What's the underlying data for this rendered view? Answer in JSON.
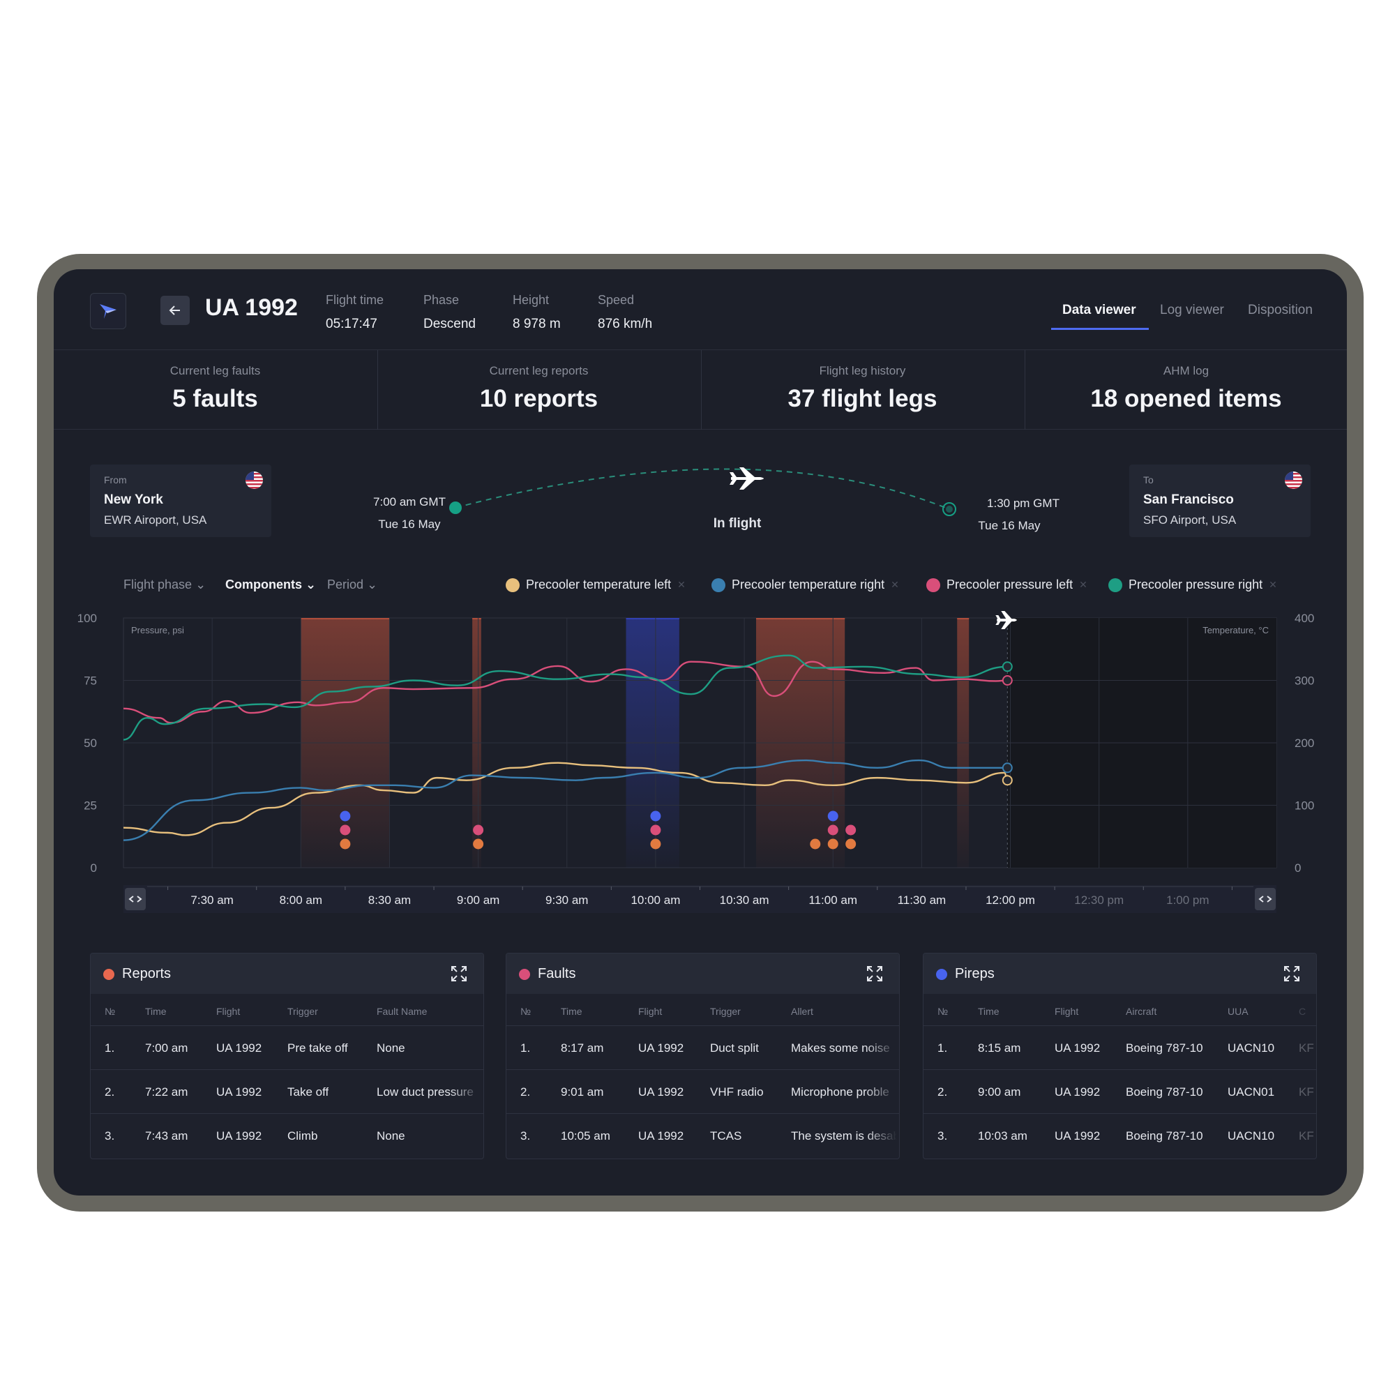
{
  "header": {
    "flight_no": "UA 1992",
    "stats": [
      {
        "label": "Flight time",
        "value": "05:17:47"
      },
      {
        "label": "Phase",
        "value": "Descend"
      },
      {
        "label": "Height",
        "value": "8 978 m"
      },
      {
        "label": "Speed",
        "value": "876 km/h"
      }
    ],
    "tabs": [
      {
        "label": "Data viewer",
        "active": true
      },
      {
        "label": "Log viewer",
        "active": false
      },
      {
        "label": "Disposition",
        "active": false
      }
    ]
  },
  "summary": [
    {
      "label": "Current leg faults",
      "value": "5 faults"
    },
    {
      "label": "Current leg reports",
      "value": "10 reports"
    },
    {
      "label": "Flight leg history",
      "value": "37 flight legs"
    },
    {
      "label": "AHM log",
      "value": "18 opened items"
    }
  ],
  "route": {
    "from": {
      "label": "From",
      "city": "New York",
      "airport": "EWR Airoport, USA"
    },
    "to": {
      "label": "To",
      "city": "San Francisco",
      "airport": "SFO Airport, USA"
    },
    "departure": {
      "time": "7:00 am GMT",
      "date": "Tue 16 May"
    },
    "arrival": {
      "time": "1:30 pm GMT",
      "date": "Tue 16 May"
    },
    "status": "In flight"
  },
  "filters": [
    {
      "label": "Flight phase",
      "active": false
    },
    {
      "label": "Components",
      "active": true
    },
    {
      "label": "Period",
      "active": false
    }
  ],
  "chart_data": {
    "type": "line",
    "left_axis": {
      "label": "Pressure, psi",
      "ticks": [
        "100",
        "75",
        "50",
        "25",
        "0"
      ],
      "range": [
        0,
        100
      ]
    },
    "right_axis": {
      "label": "Temperature, °C",
      "ticks": [
        "400",
        "300",
        "200",
        "100",
        "0"
      ],
      "range": [
        0,
        400
      ]
    },
    "x_ticks": [
      "7:30 am",
      "8:00 am",
      "8:30 am",
      "9:00 am",
      "9:30 am",
      "10:00 am",
      "10:30 am",
      "11:00 am",
      "11:30 am",
      "12:00 pm",
      "12:30 pm",
      "1:00 pm"
    ],
    "x_ticks_future_from": 10,
    "x_range_min": [
      420,
      810
    ],
    "now_min": 719,
    "series": [
      {
        "name": "Precooler temperature left",
        "color": "#e8c07d",
        "axis": "left",
        "x": [
          420,
          435,
          441,
          455,
          470,
          485,
          500,
          508,
          518,
          526,
          536,
          552,
          567,
          578,
          593,
          608,
          622,
          637,
          645,
          660,
          675,
          689,
          705,
          718,
          719
        ],
        "y": [
          16,
          14,
          13,
          18,
          24,
          30,
          33,
          31,
          30,
          36,
          35,
          40,
          42,
          41,
          40,
          38,
          34,
          33,
          35,
          33,
          36,
          35,
          34,
          38,
          35
        ]
      },
      {
        "name": "Precooler temperature right",
        "color": "#3a7fb0",
        "axis": "left",
        "x": [
          420,
          444,
          463,
          480,
          488,
          504,
          512,
          525,
          538,
          555,
          573,
          582,
          600,
          614,
          629,
          651,
          660,
          675,
          689,
          700,
          719
        ],
        "y": [
          11,
          27,
          30,
          32,
          31,
          33,
          33,
          32,
          37,
          36,
          35,
          36,
          38,
          36,
          40,
          43,
          42,
          40,
          43,
          40,
          40
        ]
      },
      {
        "name": "Precooler pressure left",
        "color": "#d94f7a",
        "axis": "right",
        "x": [
          420,
          432,
          436,
          447,
          455,
          463,
          479,
          485,
          496,
          508,
          518,
          538,
          552,
          567,
          578,
          590,
          602,
          612,
          631,
          640,
          653,
          660,
          677,
          688,
          694,
          704,
          715,
          719
        ],
        "y": [
          255,
          240,
          232,
          250,
          267,
          248,
          265,
          260,
          265,
          288,
          286,
          288,
          302,
          323,
          298,
          318,
          300,
          330,
          322,
          275,
          330,
          318,
          312,
          320,
          300,
          302,
          299,
          300
        ]
      },
      {
        "name": "Precooler pressure right",
        "color": "#1e9e84",
        "axis": "right",
        "x": [
          420,
          428,
          434,
          448,
          468,
          478,
          490,
          504,
          518,
          533,
          547,
          567,
          585,
          596,
          612,
          625,
          645,
          654,
          670,
          690,
          703,
          719
        ],
        "y": [
          205,
          240,
          230,
          255,
          262,
          257,
          282,
          290,
          300,
          292,
          315,
          302,
          310,
          305,
          278,
          320,
          340,
          320,
          322,
          310,
          305,
          322
        ]
      }
    ],
    "bands": [
      {
        "from_min": 480,
        "to_min": 510,
        "color": "#c0533d"
      },
      {
        "from_min": 538,
        "to_min": 541,
        "color": "#c0533d"
      },
      {
        "from_min": 590,
        "to_min": 608,
        "color": "#3343c0"
      },
      {
        "from_min": 634,
        "to_min": 664,
        "color": "#c0533d"
      },
      {
        "from_min": 702,
        "to_min": 706,
        "color": "#c0533d"
      }
    ],
    "event_markers": [
      {
        "at_min": 495,
        "dots": [
          "#4863ee",
          "#d94f7a",
          "#e27a40"
        ]
      },
      {
        "at_min": 540,
        "dots": [
          "#d94f7a",
          "#e27a40"
        ]
      },
      {
        "at_min": 600,
        "dots": [
          "#4863ee",
          "#d94f7a",
          "#e27a40"
        ]
      },
      {
        "at_min": 660,
        "dots": [
          "#4863ee",
          "#d94f7a",
          "#e27a40"
        ]
      },
      {
        "at_min": 654,
        "dots": [
          "#e27a40"
        ]
      },
      {
        "at_min": 666,
        "dots": [
          "#d94f7a",
          "#e27a40"
        ]
      }
    ]
  },
  "panels": [
    {
      "title": "Reports",
      "color": "#e8684f",
      "columns": [
        "№",
        "Time",
        "Flight",
        "Trigger",
        "Fault Name"
      ],
      "rows": [
        [
          "1.",
          "7:00 am",
          "UA 1992",
          "Pre take off",
          "None"
        ],
        [
          "2.",
          "7:22 am",
          "UA 1992",
          "Take off",
          "Low duct pressure"
        ],
        [
          "3.",
          "7:43 am",
          "UA 1992",
          "Climb",
          "None"
        ]
      ]
    },
    {
      "title": "Faults",
      "color": "#d94f7a",
      "columns": [
        "№",
        "Time",
        "Flight",
        "Trigger",
        "Allert"
      ],
      "rows": [
        [
          "1.",
          "8:17 am",
          "UA 1992",
          "Duct split",
          "Makes some noise"
        ],
        [
          "2.",
          "9:01 am",
          "UA 1992",
          "VHF radio",
          "Microphone proble"
        ],
        [
          "3.",
          "10:05 am",
          "UA 1992",
          "TCAS",
          "The system is desab"
        ]
      ]
    },
    {
      "title": "Pireps",
      "color": "#4863ee",
      "columns": [
        "№",
        "Time",
        "Flight",
        "Aircraft",
        "UUA",
        "C"
      ],
      "rows": [
        [
          "1.",
          "8:15 am",
          "UA 1992",
          "Boeing 787-10",
          "UACN10",
          "KF"
        ],
        [
          "2.",
          "9:00 am",
          "UA 1992",
          "Boeing 787-10",
          "UACN01",
          "KF"
        ],
        [
          "3.",
          "10:03 am",
          "UA 1992",
          "Boeing 787-10",
          "UACN10",
          "KF"
        ]
      ]
    }
  ]
}
